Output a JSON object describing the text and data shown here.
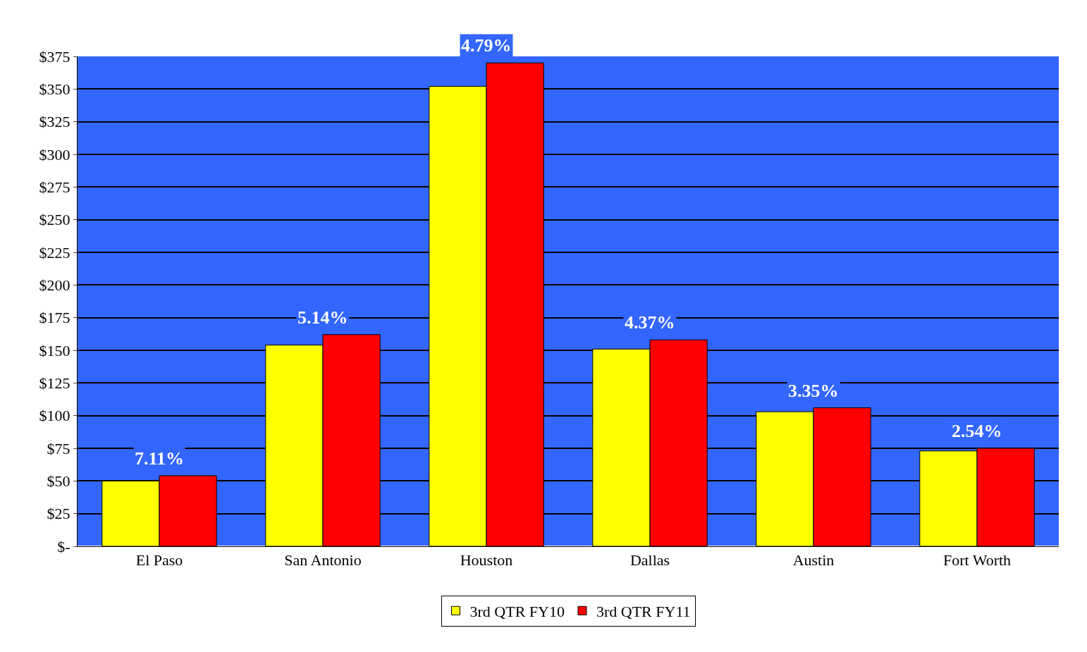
{
  "chart_data": {
    "type": "bar",
    "categories": [
      "El Paso",
      "San Antonio",
      "Houston",
      "Dallas",
      "Austin",
      "Fort Worth"
    ],
    "series": [
      {
        "name": "3rd QTR FY10",
        "color": "#ffff00",
        "values": [
          50,
          154,
          352,
          151,
          103,
          73
        ]
      },
      {
        "name": "3rd QTR FY11",
        "color": "#ff0000",
        "values": [
          54,
          162,
          370,
          158,
          106,
          75
        ]
      }
    ],
    "ylim": [
      0,
      375
    ],
    "yticks": [
      {
        "value": 0,
        "label": "$-"
      },
      {
        "value": 25,
        "label": "$25"
      },
      {
        "value": 50,
        "label": "$50"
      },
      {
        "value": 75,
        "label": "$75"
      },
      {
        "value": 100,
        "label": "$100"
      },
      {
        "value": 125,
        "label": "$125"
      },
      {
        "value": 150,
        "label": "$150"
      },
      {
        "value": 175,
        "label": "$175"
      },
      {
        "value": 200,
        "label": "$200"
      },
      {
        "value": 225,
        "label": "$225"
      },
      {
        "value": 250,
        "label": "$250"
      },
      {
        "value": 275,
        "label": "$275"
      },
      {
        "value": 300,
        "label": "$300"
      },
      {
        "value": 325,
        "label": "$325"
      },
      {
        "value": 350,
        "label": "$350"
      },
      {
        "value": 375,
        "label": "$375"
      }
    ],
    "annotations": [
      {
        "text": "7.11%",
        "x": "El Paso",
        "y": 54
      },
      {
        "text": "5.14%",
        "x": "San Antonio",
        "y": 162
      },
      {
        "text": "4.79%",
        "x": "Houston",
        "y": 370
      },
      {
        "text": "4.37%",
        "x": "Dallas",
        "y": 158
      },
      {
        "text": "3.35%",
        "x": "Austin",
        "y": 106
      },
      {
        "text": "2.54%",
        "x": "Fort Worth",
        "y": 75
      }
    ],
    "grid": "y",
    "legend": "bottom"
  }
}
